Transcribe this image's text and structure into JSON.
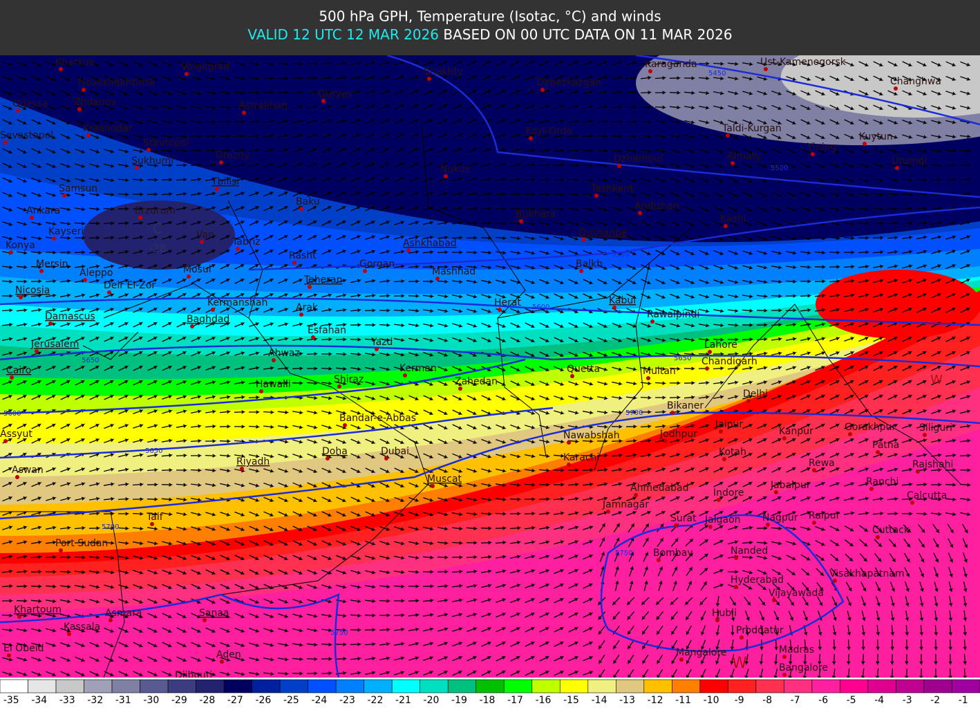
{
  "header": {
    "title": "500 hPa GPH, Temperature (Isotac, °C) and winds",
    "valid": "VALID 12 UTC 12 MAR 2026",
    "based": "BASED ON 00 UTC DATA ON 11 MAR 2026"
  },
  "map": {
    "cities": [
      "Kharkov",
      "Volgograd",
      "Novoshakhtinsk",
      "Odessa",
      "Zhdanov",
      "Astrakhan",
      "Guryev",
      "Shakhty",
      "Karaganda",
      "Ust-Kamenogorsk",
      "Dzhezkazgan",
      "Changhwa",
      "Krasnodar",
      "Sevastopol",
      "Stavropol",
      "Kzyl-Orda",
      "Taldi-Kurgan",
      "Kuytun",
      "Yining",
      "Sukhumi",
      "Grozny",
      "Nukus",
      "Dzhambul",
      "Almaty",
      "Urumqi",
      "Samsun",
      "Tbilisi",
      "Baku",
      "Tashkent",
      "Andizhan",
      "Ankara",
      "Erzurum",
      "Bukhara",
      "Kashi",
      "Kayseri",
      "Van",
      "Tabriz",
      "Dushanbe",
      "Konya",
      "Ashkhabad",
      "Rasht",
      "Mersin",
      "Aleppo",
      "Gorgan",
      "Balkh",
      "Mosul",
      "Mashhad",
      "Nicosia",
      "Deir El-Zor",
      "Teheran",
      "Kermanshah",
      "Arak",
      "Herat",
      "Kabul",
      "Rawalpindi",
      "Damascus",
      "Baghdad",
      "Esfahan",
      "Jerusalem",
      "Yazd",
      "Lahore",
      "Ahwaz",
      "Chandigarh",
      "Cairo",
      "Kerman",
      "Quetta",
      "Multan",
      "Zahedan",
      "Hawalli",
      "Shiraz",
      "Delhi",
      "Bikaner",
      "Assyut",
      "Bandar-e-Abbas",
      "Jaipur",
      "Kanpur",
      "Gorakhpur",
      "Siliguri",
      "Nawabshah",
      "Jodhpur",
      "Patna",
      "Doha",
      "Dubai",
      "Kotah",
      "Rewa",
      "Rajshahi",
      "Riyadh",
      "Karachi",
      "Aswan",
      "Muscat",
      "Ranchi",
      "Ahmedabad",
      "Indore",
      "Jabalpur",
      "Calcutta",
      "Jamnagar",
      "Taif",
      "Surat",
      "Jalgaon",
      "Nagpur",
      "Raipur",
      "Cuttack",
      "Port Sudan",
      "Bombay",
      "Nanded",
      "Visakhapatnam",
      "Hyderabad",
      "Vijayawada",
      "Khartoum",
      "Asmara",
      "Sanaa",
      "Hubli",
      "Kassala",
      "Proddatur",
      "Mangalore",
      "Madras",
      "El Obeid",
      "Aden",
      "Bangalore",
      "Djibouti"
    ],
    "contour_labels": [
      5450,
      5500,
      5550,
      5600,
      5650,
      5650,
      5600,
      5650,
      5700,
      5700,
      5750,
      5750
    ],
    "markers": [
      "C",
      "-28",
      "W",
      "W"
    ]
  },
  "colorbar": {
    "values": [
      -35,
      -34,
      -33,
      -32,
      -31,
      -30,
      -29,
      -28,
      -27,
      -26,
      -25,
      -24,
      -23,
      -22,
      -21,
      -20,
      -19,
      -18,
      -17,
      -16,
      -15,
      -14,
      -13,
      -12,
      -11,
      -10,
      -9,
      -8,
      -7,
      -6,
      -5,
      -4,
      -3,
      -2,
      -1
    ],
    "colors": [
      "#ffffff",
      "#e6e6e6",
      "#c8c8c8",
      "#a0a0b8",
      "#8080a4",
      "#5a5a92",
      "#3c3c80",
      "#22226e",
      "#000060",
      "#0020a0",
      "#0040c8",
      "#0050ff",
      "#0080ff",
      "#00b0ff",
      "#00ffff",
      "#00e0c0",
      "#00c080",
      "#00c000",
      "#00ff00",
      "#c0ff00",
      "#ffff00",
      "#f0f080",
      "#e0c880",
      "#ffc000",
      "#ff8000",
      "#ff0000",
      "#ff2020",
      "#ff3050",
      "#ff3080",
      "#ff20a0",
      "#ff0090",
      "#e00090",
      "#c00090",
      "#a00090",
      "#a000a0"
    ]
  }
}
